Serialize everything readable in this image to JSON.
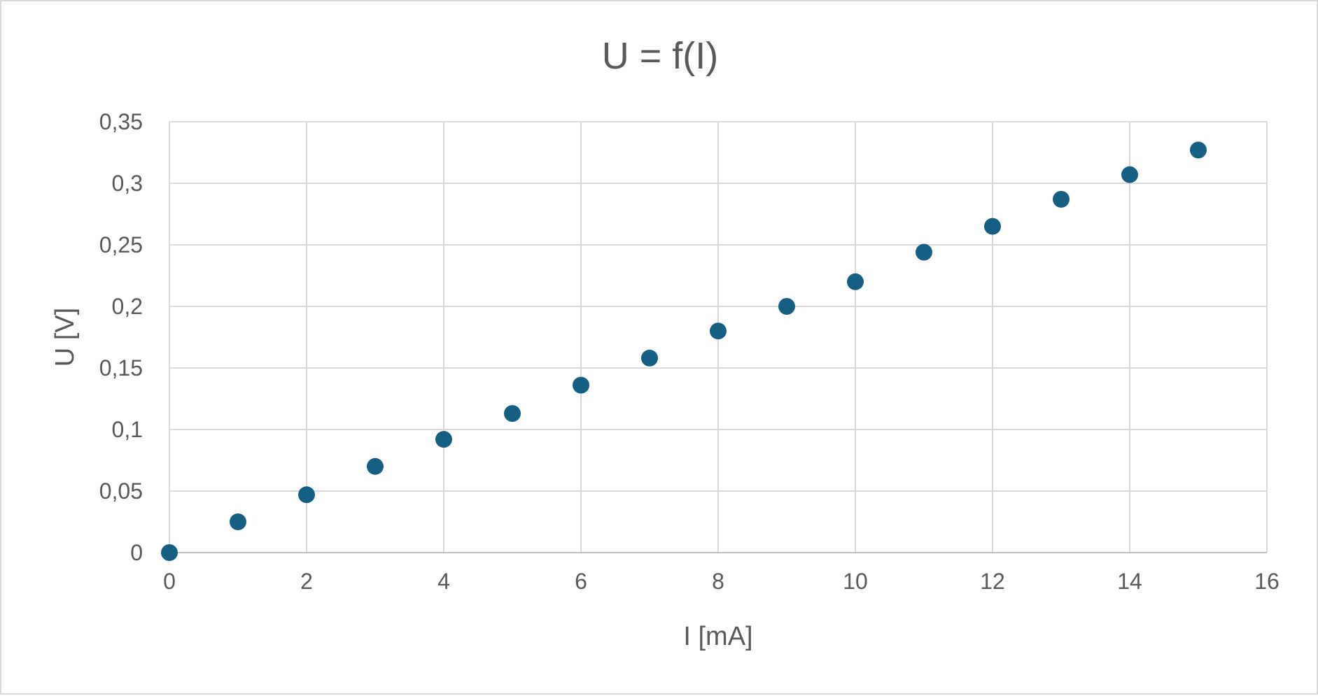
{
  "chart_data": {
    "type": "scatter",
    "title": "U = f(I)",
    "xlabel": "I [mA]",
    "ylabel": "U [V]",
    "xlim": [
      0,
      16
    ],
    "ylim": [
      0,
      0.35
    ],
    "x_ticks": [
      "0",
      "2",
      "4",
      "6",
      "8",
      "10",
      "12",
      "14",
      "16"
    ],
    "y_ticks": [
      "0",
      "0,05",
      "0,1",
      "0,15",
      "0,2",
      "0,25",
      "0,3",
      "0,35"
    ],
    "x_tick_values": [
      0,
      2,
      4,
      6,
      8,
      10,
      12,
      14,
      16
    ],
    "y_tick_values": [
      0,
      0.05,
      0.1,
      0.15,
      0.2,
      0.25,
      0.3,
      0.35
    ],
    "grid": true,
    "marker_color": "#156082",
    "series": [
      {
        "x": [
          0,
          1,
          2,
          3,
          4,
          5,
          6,
          7,
          8,
          9,
          10,
          11,
          12,
          13,
          14,
          15
        ],
        "values": [
          0,
          0.025,
          0.047,
          0.07,
          0.092,
          0.113,
          0.136,
          0.158,
          0.18,
          0.2,
          0.22,
          0.244,
          0.265,
          0.287,
          0.307,
          0.327
        ]
      }
    ]
  }
}
